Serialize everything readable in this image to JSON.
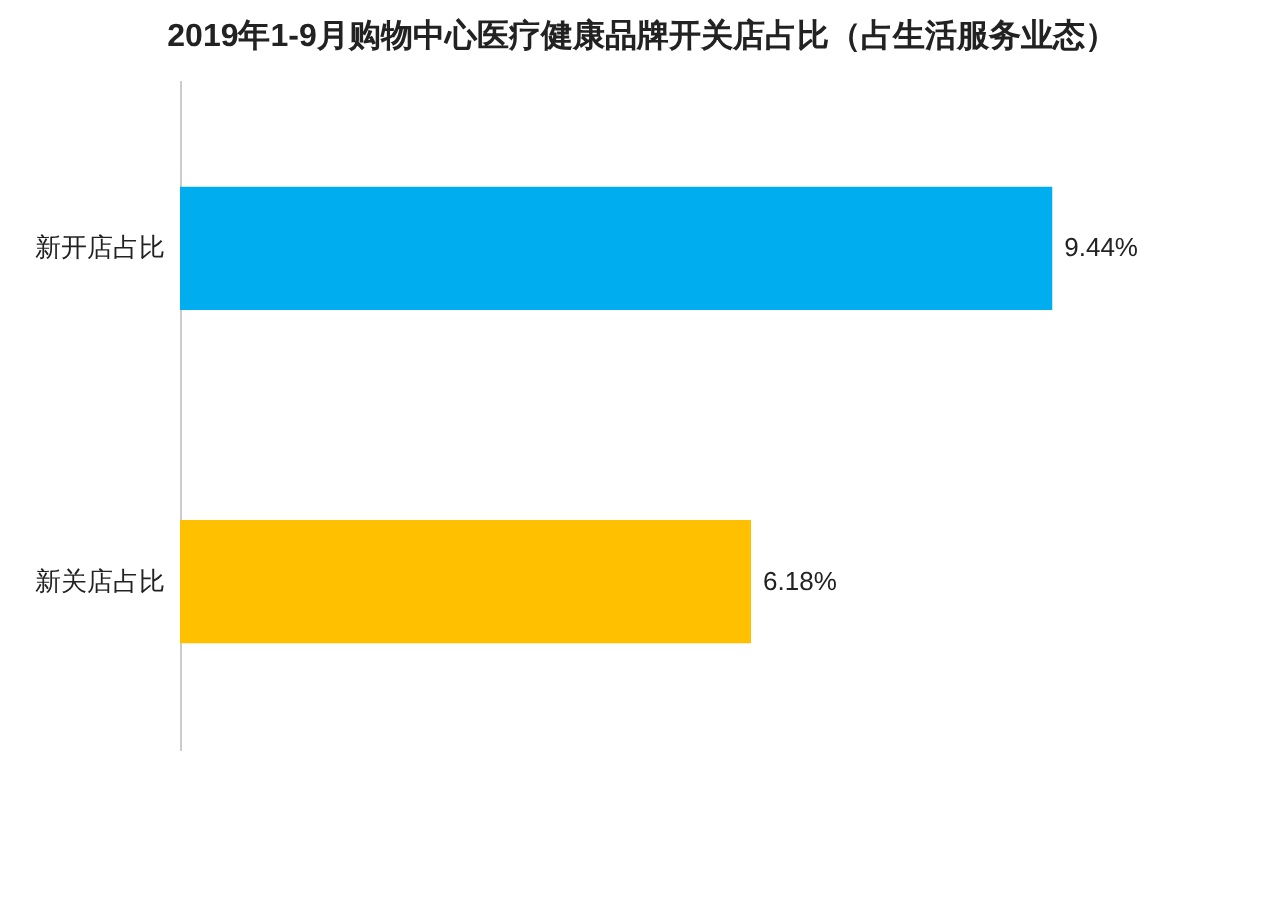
{
  "chart_data": {
    "type": "bar",
    "orientation": "horizontal",
    "title": "2019年1-9月购物中心医疗健康品牌开关店占比（占生活服务业态）",
    "categories": [
      "新开店占比",
      "新关店占比"
    ],
    "values": [
      9.44,
      6.18
    ],
    "value_labels": [
      "9.44%",
      "6.18%"
    ],
    "colors": [
      "#00aeef",
      "#ffc000"
    ]
  }
}
